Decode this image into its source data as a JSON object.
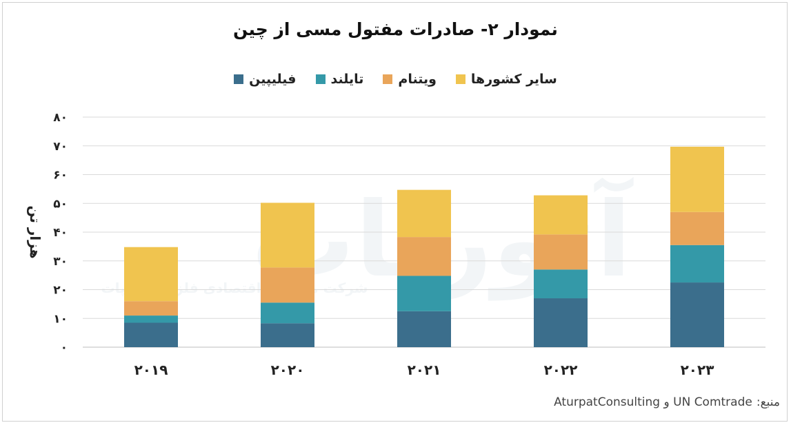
{
  "chart_data": {
    "type": "bar",
    "stacked": true,
    "title": "نمودار ۲- صادرات مفتول مسی از چین",
    "ylabel": "هزار تن",
    "xlabel": "",
    "categories": [
      "۲۰۱۹",
      "۲۰۲۰",
      "۲۰۲۱",
      "۲۰۲۲",
      "۲۰۲۳"
    ],
    "ylim": [
      0,
      80
    ],
    "yticks": [
      0,
      10,
      20,
      30,
      40,
      50,
      60,
      70,
      80
    ],
    "ytick_labels": [
      "۰",
      "۱۰",
      "۲۰",
      "۳۰",
      "۴۰",
      "۵۰",
      "۶۰",
      "۷۰",
      "۸۰"
    ],
    "grid": true,
    "legend_position": "top-center",
    "series": [
      {
        "name": "فیلیپین",
        "color": "#3b6e8c",
        "values": [
          8.5,
          8.3,
          12.5,
          17.0,
          22.5
        ]
      },
      {
        "name": "تایلند",
        "color": "#3499a8",
        "values": [
          2.5,
          7.2,
          12.3,
          10.0,
          13.0
        ]
      },
      {
        "name": "ویتنام",
        "color": "#e9a55a",
        "values": [
          5.0,
          12.2,
          13.5,
          12.2,
          11.5
        ]
      },
      {
        "name": "سایر کشورها",
        "color": "#f0c44f",
        "values": [
          18.8,
          22.5,
          16.4,
          13.6,
          22.7
        ]
      }
    ]
  },
  "source": {
    "label": "منبع:",
    "text": "UN Comtrade و AturpatConsulting"
  },
  "watermark": {
    "brand": "آتورپات",
    "tagline": "شرکت مشاوره اقتصادی فلزات آتورپات"
  }
}
